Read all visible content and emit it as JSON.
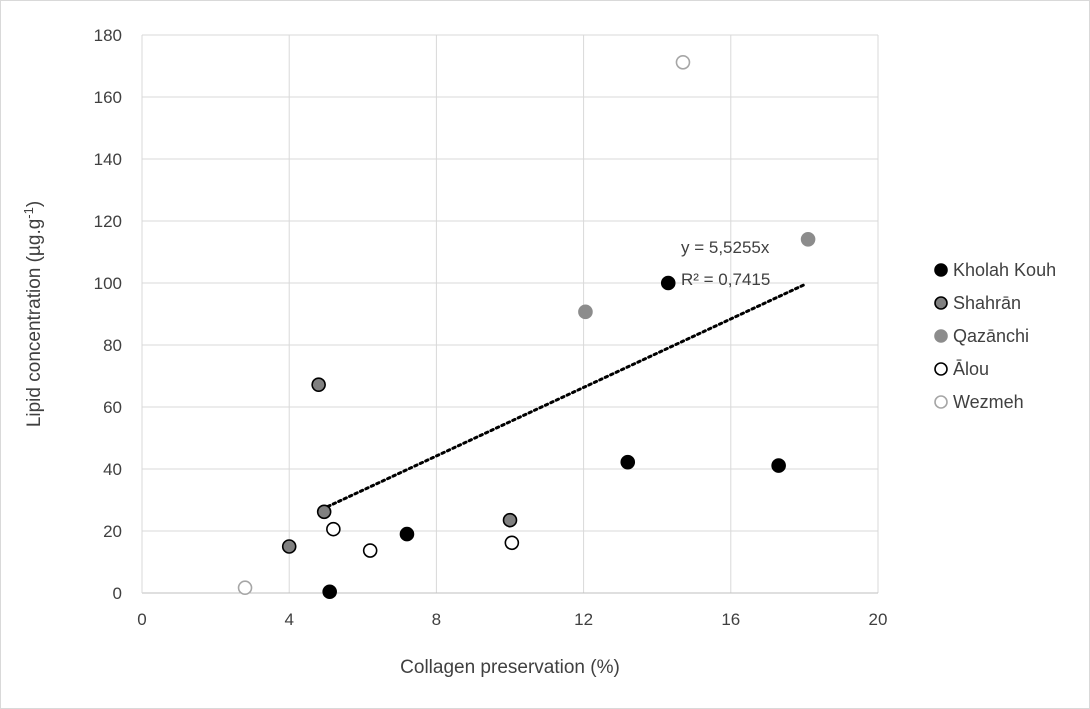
{
  "chart_data": {
    "type": "scatter",
    "xlabel": "Collagen preservation (%)",
    "ylabel": "Lipid concentration (µg.g-1)",
    "ylabel_parts": {
      "main": "Lipid concentration (µg.g",
      "sup": "-1",
      "close": ")"
    },
    "xlim": [
      0,
      20
    ],
    "ylim": [
      0,
      180
    ],
    "xticks": [
      0,
      4,
      8,
      12,
      16,
      20
    ],
    "yticks": [
      0,
      20,
      40,
      60,
      80,
      100,
      120,
      140,
      160,
      180
    ],
    "xtick_labels": [
      "0",
      "4",
      "8",
      "12",
      "16",
      "20"
    ],
    "ytick_labels": [
      "0",
      "20",
      "40",
      "60",
      "80",
      "100",
      "120",
      "140",
      "160",
      "180"
    ],
    "grid": true,
    "legend_position": "right",
    "series": [
      {
        "name": "Kholah Kouh",
        "fill": "#000000",
        "stroke": "#000000",
        "x": [
          14.3,
          13.2,
          17.3,
          7.2,
          5.1
        ],
        "y": [
          100,
          42.2,
          41.1,
          19,
          0.4
        ]
      },
      {
        "name": "Shahrān",
        "fill": "#808080",
        "stroke": "#000000",
        "x": [
          4.8,
          4.95,
          4.0,
          10.0
        ],
        "y": [
          67.2,
          26.2,
          15,
          23.5
        ]
      },
      {
        "name": "Qazānchi",
        "fill": "#8c8c8c",
        "stroke": "#8c8c8c",
        "x": [
          12.05,
          18.1
        ],
        "y": [
          90.7,
          114.1
        ]
      },
      {
        "name": "Ālou",
        "fill": "#ffffff",
        "stroke": "#000000",
        "x": [
          5.2,
          6.2,
          10.05
        ],
        "y": [
          20.6,
          13.7,
          16.2
        ]
      },
      {
        "name": "Wezmeh",
        "fill": "#ffffff",
        "stroke": "#a6a6a6",
        "x": [
          2.8,
          14.7
        ],
        "y": [
          1.7,
          171.2
        ]
      }
    ],
    "trendline": {
      "x_start": 4.9,
      "x_end": 18.05,
      "color": "#000000",
      "equation": "y = 5,5255x",
      "r_squared": "R² = 0,7415"
    }
  }
}
